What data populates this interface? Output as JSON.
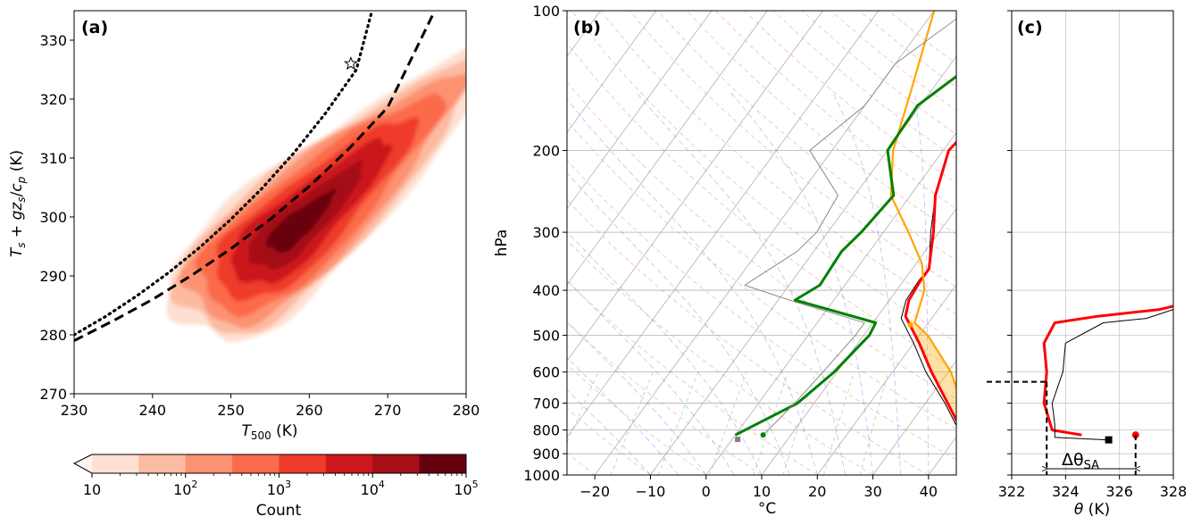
{
  "chart_data": [
    {
      "panel_label": "(a)",
      "type": "heatmap",
      "subtype": "filled-contour-2d-histogram",
      "xlabel_base": "T",
      "xlabel_sub": "500",
      "xlabel_unit": " (K)",
      "ylabel": "Ts + gzs/cp (K)",
      "ylabel_parts": {
        "t": "T",
        "s1": "s",
        "plus": " + ",
        "gz": "gz",
        "s2": "s",
        "slash": "/",
        "c": "c",
        "p": "p",
        "unit": " (K)"
      },
      "xlim": [
        230,
        280
      ],
      "ylim": [
        270,
        335
      ],
      "xticks": [
        "230",
        "240",
        "250",
        "260",
        "270",
        "280"
      ],
      "yticks": [
        "270",
        "280",
        "290",
        "300",
        "310",
        "320",
        "330"
      ],
      "xtick_values": [
        230,
        240,
        250,
        260,
        270,
        280
      ],
      "ytick_values": [
        270,
        280,
        290,
        300,
        310,
        320,
        330
      ],
      "density_peak": {
        "x": 258,
        "y": 298
      },
      "star_point": {
        "x": 265.3,
        "y": 326
      },
      "dotted_line": {
        "x": [
          230,
          234,
          238,
          242,
          246,
          250,
          254,
          258,
          262,
          266,
          268
        ],
        "y": [
          280,
          283.1,
          286.6,
          290.5,
          294.8,
          299.6,
          304.9,
          310.8,
          317.5,
          325.0,
          335.0
        ]
      },
      "dashed_line": {
        "x": [
          230,
          235,
          240,
          245,
          250,
          255,
          260,
          265,
          270,
          276
        ],
        "y": [
          279,
          282.4,
          286.0,
          290.1,
          294.6,
          299.6,
          305.2,
          311.5,
          318.6,
          335
        ]
      },
      "colorbar": {
        "label": "Count",
        "scale": "log",
        "tick_bases": [
          "10",
          "10",
          "10",
          "10",
          "10"
        ],
        "tick_exps": [
          "",
          "2",
          "3",
          "4",
          "5"
        ],
        "levels": 8,
        "extend": "min",
        "colors": [
          "#fee0d2",
          "#fcbba1",
          "#fc9272",
          "#fb6a4a",
          "#ef3b2c",
          "#cb181d",
          "#a50f15",
          "#67000d"
        ]
      }
    },
    {
      "panel_label": "(b)",
      "type": "line",
      "subtype": "skew-T log-p",
      "xlabel": "°C",
      "ylabel": "hPa",
      "xlim": [
        -25,
        45
      ],
      "ylim": [
        1000,
        100
      ],
      "xticks": [
        "−20",
        "−10",
        "0",
        "10",
        "20",
        "30",
        "40"
      ],
      "xtick_values": [
        -20,
        -10,
        0,
        10,
        20,
        30,
        40
      ],
      "yticks": [
        "100",
        "200",
        "300",
        "400",
        "500",
        "600",
        "700",
        "800",
        "900",
        "1000"
      ],
      "ytick_values": [
        100,
        200,
        300,
        400,
        500,
        600,
        700,
        800,
        900,
        1000
      ],
      "series": [
        {
          "color": "#000000",
          "p": [
            830,
            800,
            700,
            600,
            520,
            460,
            420,
            380,
            360,
            300,
            250,
            200,
            180,
            150,
            130,
            115,
            100
          ],
          "T": [
            42.5,
            39.5,
            33.5,
            26,
            20,
            14.5,
            13,
            12.7,
            13,
            8.5,
            4.5,
            1,
            1.5,
            5,
            5.5,
            7.5,
            8
          ]
        },
        {
          "color": "#ff0000",
          "p": [
            822,
            800,
            700,
            600,
            520,
            455,
            420,
            380,
            360,
            300,
            250,
            200,
            180,
            150,
            130,
            115,
            100
          ],
          "T": [
            41.5,
            40,
            34,
            27,
            21,
            15,
            13.5,
            13,
            13,
            9,
            4.5,
            1,
            1.8,
            5.5,
            6,
            8,
            9
          ]
        },
        {
          "color": "#ffa500",
          "p": [
            820,
            700,
            600,
            500,
            470,
            400,
            350,
            300,
            250,
            200,
            150,
            100
          ],
          "T": [
            42,
            36.5,
            30.5,
            21.5,
            17.5,
            15,
            11,
            4.5,
            -3.5,
            -9,
            -13.5,
            -20
          ]
        },
        {
          "color": "#008000",
          "p": [
            820,
            700,
            600,
            500,
            470,
            420,
            390,
            330,
            300,
            250,
            200,
            160,
            130,
            100
          ],
          "T": [
            0,
            7,
            9.5,
            11,
            10.5,
            -7,
            -4.5,
            -5,
            -4,
            -3,
            -10,
            -10.5,
            -6,
            -4.5
          ]
        },
        {
          "color": "#808080",
          "p": [
            820,
            700,
            600,
            500,
            470,
            420,
            390,
            330,
            300,
            250,
            200,
            160,
            130,
            100
          ],
          "T": [
            5,
            6.5,
            7.5,
            8.5,
            8.5,
            -8,
            -18,
            -13,
            -12,
            -13,
            -24,
            -20,
            -20,
            -14
          ]
        }
      ],
      "markers": [
        {
          "color": "#000000",
          "shape": "square",
          "p": 838,
          "T": 43
        },
        {
          "color": "#ff0000",
          "shape": "circle",
          "p": 822,
          "T": 42
        },
        {
          "color": "#ffa500",
          "shape": "circle",
          "p": 475,
          "T": 17
        },
        {
          "color": "#008000",
          "shape": "circle",
          "p": 820,
          "T": 5
        },
        {
          "color": "#808080",
          "shape": "square",
          "p": 838,
          "T": 1
        }
      ]
    },
    {
      "panel_label": "(c)",
      "type": "line",
      "xlabel_sym": "θ",
      "xlabel_unit": " (K)",
      "xlim": [
        322,
        328
      ],
      "ylim": [
        1000,
        100
      ],
      "xticks": [
        "322",
        "324",
        "326",
        "328"
      ],
      "xtick_values": [
        322,
        324,
        326,
        328
      ],
      "series": [
        {
          "color": "#ff0000",
          "p": [
            820,
            800,
            700,
            600,
            520,
            470,
            455,
            440,
            430
          ],
          "theta": [
            324.6,
            323.5,
            323.2,
            323.3,
            323.2,
            323.6,
            325.2,
            327.5,
            328.2
          ]
        },
        {
          "color": "#000000",
          "p": [
            840,
            830,
            780,
            700,
            600,
            520,
            470,
            460,
            440
          ],
          "theta": [
            325.5,
            323.6,
            323.6,
            323.5,
            323.9,
            324.0,
            325.4,
            327,
            328
          ]
        }
      ],
      "markers": [
        {
          "color": "#000000",
          "shape": "square",
          "p": 840,
          "theta": 325.6
        },
        {
          "color": "#ff0000",
          "shape": "circle",
          "p": 820,
          "theta": 326.6
        }
      ],
      "dashed_guides": {
        "level_p": 630,
        "theta_left": 323.3,
        "theta_right": 326.6
      },
      "annotation_sym": "Δθ",
      "annotation_sub": "SA"
    }
  ]
}
